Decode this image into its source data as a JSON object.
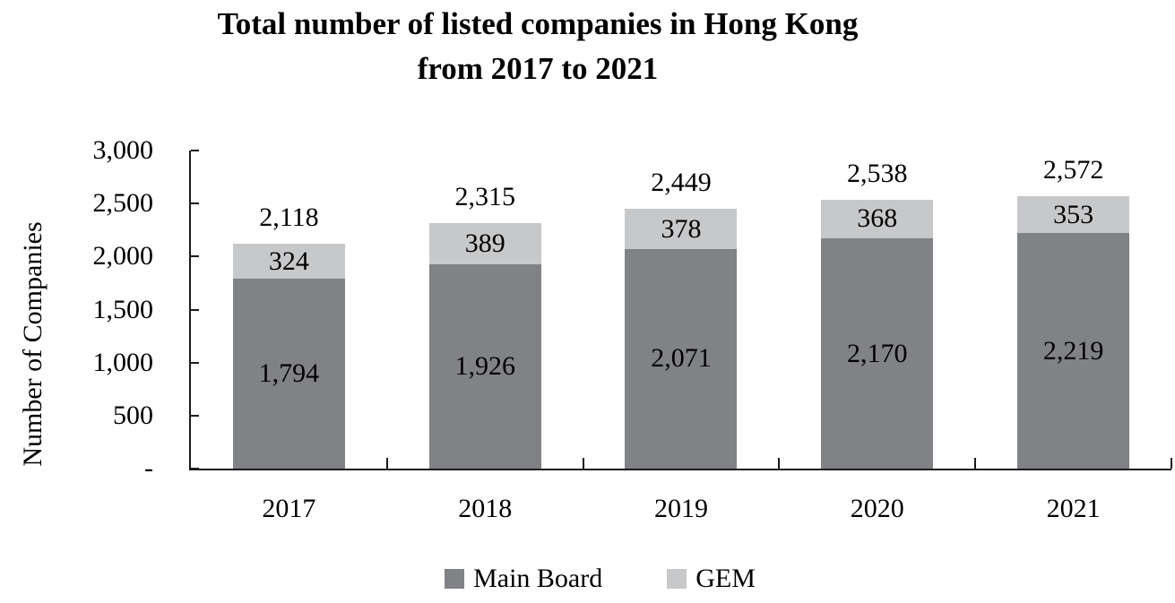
{
  "title": {
    "line1": "Total number of listed companies in Hong Kong",
    "line2": "from 2017 to 2021"
  },
  "y_axis": {
    "label": "Number of Companies",
    "tick_values": [
      0,
      500,
      1000,
      1500,
      2000,
      2500,
      3000
    ],
    "tick_labels": [
      "-",
      "500",
      "1,000",
      "1,500",
      "2,000",
      "2,500",
      "3,000"
    ]
  },
  "x_axis": {
    "categories": [
      "2017",
      "2018",
      "2019",
      "2020",
      "2021"
    ]
  },
  "legend": [
    {
      "label": "Main Board",
      "color": "#808285"
    },
    {
      "label": "GEM",
      "color": "#c7c8ca"
    }
  ],
  "colors": {
    "main_board": "#808285",
    "gem": "#c7c8ca",
    "axis": "#1a1a1a",
    "text": "#000000",
    "background": "#ffffff"
  },
  "chart_data": {
    "type": "bar",
    "stacked": true,
    "title": "Total number of listed companies in Hong Kong from 2017 to 2021",
    "xlabel": "",
    "ylabel": "Number of Companies",
    "ylim": [
      0,
      3000
    ],
    "grid": false,
    "legend_position": "bottom",
    "categories": [
      "2017",
      "2018",
      "2019",
      "2020",
      "2021"
    ],
    "series": [
      {
        "name": "Main Board",
        "color": "#808285",
        "values": [
          1794,
          1926,
          2071,
          2170,
          2219
        ],
        "labels": [
          "1,794",
          "1,926",
          "2,071",
          "2,170",
          "2,219"
        ]
      },
      {
        "name": "GEM",
        "color": "#c7c8ca",
        "values": [
          324,
          389,
          378,
          368,
          353
        ],
        "labels": [
          "324",
          "389",
          "378",
          "368",
          "353"
        ]
      }
    ],
    "totals": [
      2118,
      2315,
      2449,
      2538,
      2572
    ],
    "total_labels": [
      "2,118",
      "2,315",
      "2,449",
      "2,538",
      "2,572"
    ]
  }
}
